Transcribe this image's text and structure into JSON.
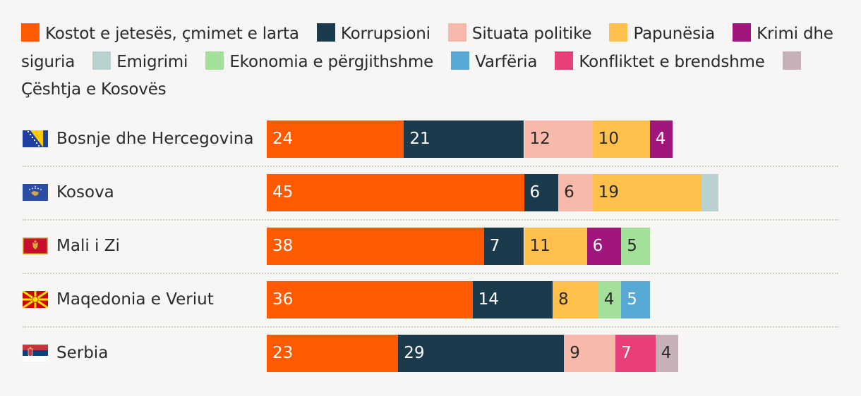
{
  "chart_data": {
    "type": "bar",
    "orientation": "horizontal",
    "stacked": true,
    "legend_position": "top",
    "categories": [
      {
        "key": "kostot",
        "label": "Kostot e jetesës, çmimet e larta",
        "color": "#ff5a00"
      },
      {
        "key": "korrupsioni",
        "label": "Korrupsioni",
        "color": "#1b3a4b"
      },
      {
        "key": "politike",
        "label": "Situata politike",
        "color": "#f7b9a9"
      },
      {
        "key": "papunesia",
        "label": "Papunësia",
        "color": "#ffc04c"
      },
      {
        "key": "krimi",
        "label": "Krimi dhe siguria",
        "color": "#a1167c"
      },
      {
        "key": "emigrimi",
        "label": "Emigrimi",
        "color": "#b9d2d0"
      },
      {
        "key": "ekonomia",
        "label": "Ekonomia e përgjithshme",
        "color": "#a3e09a"
      },
      {
        "key": "varferia",
        "label": "Varfëria",
        "color": "#58a8d5"
      },
      {
        "key": "konfliktet",
        "label": "Konfliktet e brendshme",
        "color": "#e83e7a"
      },
      {
        "key": "kosova",
        "label": "Çështja e Kosovës",
        "color": "#c6b1b7"
      }
    ],
    "rows": [
      {
        "country": "Bosnje dhe Hercegovina",
        "flag": "bosnia-flag",
        "segments": [
          {
            "cat": "kostot",
            "value": 24,
            "label": "24"
          },
          {
            "cat": "korrupsioni",
            "value": 21,
            "label": "21"
          },
          {
            "cat": "politike",
            "value": 12,
            "label": "12"
          },
          {
            "cat": "papunesia",
            "value": 10,
            "label": "10"
          },
          {
            "cat": "krimi",
            "value": 4,
            "label": "4"
          }
        ]
      },
      {
        "country": "Kosova",
        "flag": "kosovo-flag",
        "segments": [
          {
            "cat": "kostot",
            "value": 45,
            "label": "45"
          },
          {
            "cat": "korrupsioni",
            "value": 6,
            "label": "6"
          },
          {
            "cat": "politike",
            "value": 6,
            "label": "6"
          },
          {
            "cat": "papunesia",
            "value": 19,
            "label": "19"
          },
          {
            "cat": "emigrimi",
            "value": 3,
            "label": ""
          }
        ]
      },
      {
        "country": "Mali i Zi",
        "flag": "montenegro-flag",
        "segments": [
          {
            "cat": "kostot",
            "value": 38,
            "label": "38"
          },
          {
            "cat": "korrupsioni",
            "value": 7,
            "label": "7"
          },
          {
            "cat": "papunesia",
            "value": 11,
            "label": "11"
          },
          {
            "cat": "krimi",
            "value": 6,
            "label": "6"
          },
          {
            "cat": "ekonomia",
            "value": 5,
            "label": "5"
          }
        ]
      },
      {
        "country": "Maqedonia e Veriut",
        "flag": "north-macedonia-flag",
        "segments": [
          {
            "cat": "kostot",
            "value": 36,
            "label": "36"
          },
          {
            "cat": "korrupsioni",
            "value": 14,
            "label": "14"
          },
          {
            "cat": "papunesia",
            "value": 8,
            "label": "8"
          },
          {
            "cat": "ekonomia",
            "value": 4,
            "label": "4"
          },
          {
            "cat": "varferia",
            "value": 5,
            "label": "5"
          }
        ]
      },
      {
        "country": "Serbia",
        "flag": "serbia-flag",
        "segments": [
          {
            "cat": "kostot",
            "value": 23,
            "label": "23"
          },
          {
            "cat": "korrupsioni",
            "value": 29,
            "label": "29"
          },
          {
            "cat": "politike",
            "value": 9,
            "label": "9"
          },
          {
            "cat": "konfliktet",
            "value": 7,
            "label": "7"
          },
          {
            "cat": "kosova",
            "value": 4,
            "label": "4"
          }
        ]
      }
    ]
  }
}
